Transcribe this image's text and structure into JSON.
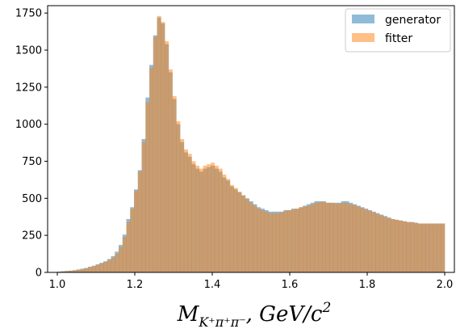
{
  "chart_data": {
    "type": "bar",
    "xlabel": "M_{K⁺π⁺π⁻}, GeV/c²",
    "xlabel_parts": {
      "main": "M",
      "sub": "K⁺π⁺π⁻",
      "rest": ", GeV/c",
      "sup": "2"
    },
    "ylabel": "",
    "xlim": [
      0.975,
      2.025
    ],
    "ylim": [
      0,
      1800
    ],
    "bin_edges_range": [
      1.0,
      2.0
    ],
    "xticks": [
      1.0,
      1.2,
      1.4,
      1.6,
      1.8,
      2.0
    ],
    "xtick_labels": [
      "1.0",
      "1.2",
      "1.4",
      "1.6",
      "1.8",
      "2.0"
    ],
    "yticks": [
      0,
      250,
      500,
      750,
      1000,
      1250,
      1500,
      1750
    ],
    "ytick_labels": [
      "0",
      "250",
      "500",
      "750",
      "1000",
      "1250",
      "1500",
      "1750"
    ],
    "legend_position": "top-right",
    "series": [
      {
        "name": "generator",
        "color": "#1f77b4",
        "alpha": 0.5,
        "values": [
          5,
          8,
          10,
          12,
          15,
          20,
          25,
          30,
          38,
          45,
          55,
          65,
          75,
          90,
          110,
          140,
          185,
          255,
          360,
          440,
          560,
          690,
          900,
          1180,
          1400,
          1600,
          1720,
          1680,
          1540,
          1350,
          1170,
          1000,
          880,
          810,
          780,
          730,
          700,
          680,
          700,
          710,
          720,
          700,
          680,
          640,
          620,
          580,
          560,
          540,
          520,
          500,
          480,
          460,
          440,
          430,
          420,
          410,
          410,
          410,
          410,
          420,
          420,
          430,
          430,
          440,
          450,
          460,
          470,
          480,
          480,
          480,
          470,
          470,
          470,
          470,
          480,
          480,
          470,
          460,
          450,
          440,
          430,
          420,
          410,
          400,
          390,
          380,
          370,
          360,
          355,
          350,
          345,
          340,
          340,
          335,
          330,
          330,
          330,
          330,
          330,
          330,
          330
        ]
      },
      {
        "name": "fitter",
        "color": "#ff7f0e",
        "alpha": 0.5,
        "values": [
          5,
          7,
          9,
          11,
          14,
          18,
          22,
          28,
          35,
          42,
          50,
          60,
          70,
          85,
          100,
          125,
          170,
          240,
          340,
          430,
          550,
          680,
          880,
          1150,
          1380,
          1590,
          1730,
          1690,
          1560,
          1370,
          1190,
          1020,
          900,
          830,
          800,
          750,
          720,
          700,
          720,
          730,
          740,
          720,
          700,
          660,
          630,
          590,
          570,
          545,
          520,
          495,
          470,
          450,
          430,
          420,
          410,
          400,
          400,
          400,
          405,
          415,
          420,
          425,
          430,
          440,
          445,
          450,
          460,
          470,
          475,
          475,
          470,
          470,
          465,
          465,
          470,
          470,
          460,
          455,
          445,
          435,
          425,
          415,
          405,
          395,
          385,
          375,
          365,
          360,
          355,
          350,
          345,
          340,
          338,
          335,
          330,
          330,
          330,
          330,
          330,
          330,
          330
        ]
      }
    ]
  }
}
